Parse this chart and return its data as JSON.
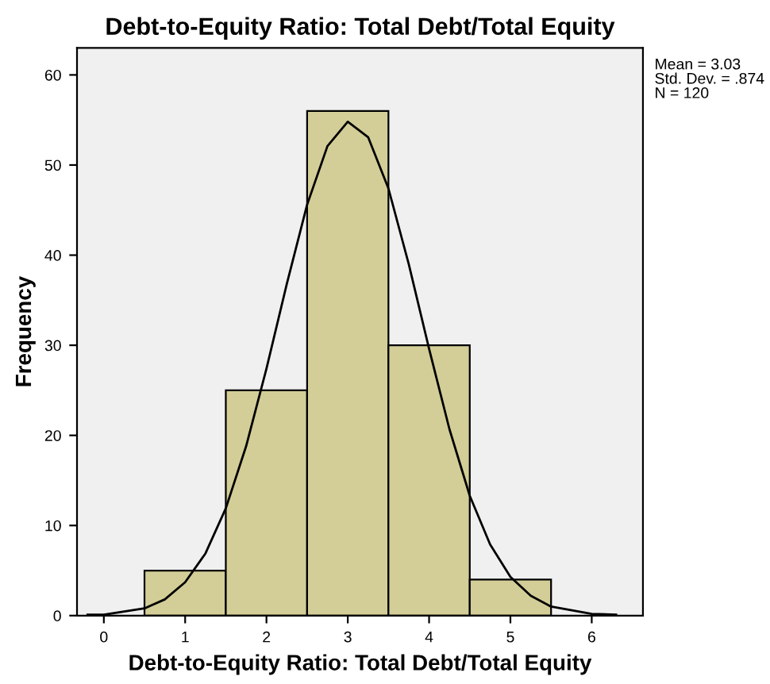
{
  "chart_data": {
    "type": "histogram",
    "title": "Debt-to-Equity Ratio: Total Debt/Total Equity",
    "xlabel": "Debt-to-Equity Ratio: Total Debt/Total Equity",
    "ylabel": "Frequency",
    "bins": [
      0.5,
      1.5,
      2.5,
      3.5,
      4.5,
      5.5
    ],
    "values": [
      5,
      25,
      56,
      30,
      4
    ],
    "color": "#d3ce97",
    "series": [
      {
        "type": "line",
        "color": "#000000",
        "x": [
          -0.2,
          0,
          0.5,
          0.75,
          1,
          1.25,
          1.5,
          1.75,
          2,
          2.25,
          2.5,
          2.75,
          3,
          3.25,
          3.5,
          3.75,
          4,
          4.25,
          4.5,
          4.75,
          5,
          5.25,
          5.5,
          6,
          6.3
        ],
        "values": [
          0.1,
          0.1,
          0.8,
          1.8,
          3.7,
          6.9,
          11.9,
          18.8,
          27.4,
          36.8,
          45.6,
          52.1,
          54.8,
          53.1,
          47.4,
          39,
          29.6,
          20.7,
          13.3,
          7.9,
          4.3,
          2.2,
          1,
          0.2,
          0.1
        ]
      }
    ],
    "xlim": [
      -0.33,
      6.63
    ],
    "xticks": [
      0,
      1,
      2,
      3,
      4,
      5,
      6
    ],
    "ylim": [
      0,
      63
    ],
    "yticks": [
      0,
      10,
      20,
      30,
      40,
      50,
      60
    ],
    "annotations": [
      "Mean = 3.03\nStd. Dev. = .874\nN = 120"
    ]
  }
}
